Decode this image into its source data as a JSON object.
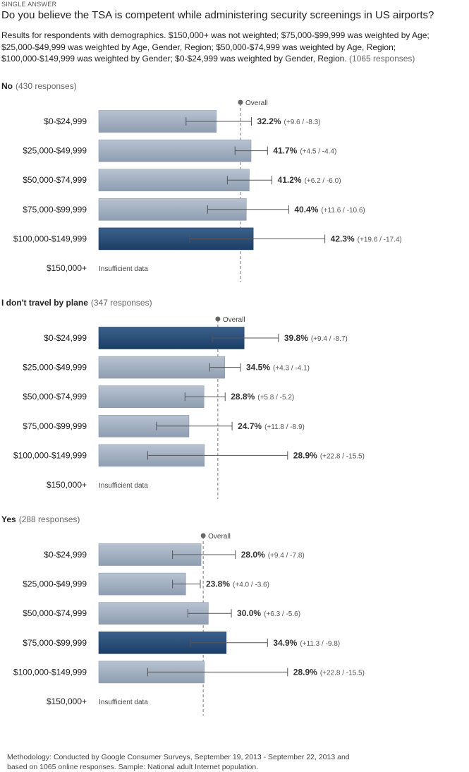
{
  "header": {
    "eyebrow": "SINGLE ANSWER",
    "title": "Do you believe the TSA is competent while administering security screenings in US airports?",
    "subtitle": "Results for respondents with demographics. $150,000+ was not weighted; $75,000-$99,999 was weighted by Age; $25,000-$49,999 was weighted by Age, Gender, Region; $50,000-$74,999 was weighted by Age, Region; $100,000-$149,999 was weighted by Gender; $0-$24,999 was weighted by Gender, Region.",
    "total_responses": "(1065 responses)"
  },
  "footer": {
    "methodology": "Methodology: Conducted by Google Consumer Surveys, September 19, 2013 - September 22, 2013 and based on 1065 online responses. Sample: National adult Internet population."
  },
  "colors": {
    "bar_light_top": "#b8c3d1",
    "bar_light_bottom": "#8e9db1",
    "bar_dark_top": "#3b618c",
    "bar_dark_bottom": "#1b3e66",
    "error_line": "#555555",
    "overall_line": "#777777"
  },
  "chart_data": [
    {
      "type": "bar",
      "orientation": "horizontal",
      "title": "No",
      "responses": "(430 responses)",
      "overall_label": "Overall",
      "overall": 38.8,
      "xlim": [
        0,
        100
      ],
      "categories": [
        "$0-$24,999",
        "$25,000-$49,999",
        "$50,000-$74,999",
        "$75,000-$99,999",
        "$100,000-$149,999",
        "$150,000+"
      ],
      "values": [
        32.2,
        41.7,
        41.2,
        40.4,
        42.3,
        null
      ],
      "value_labels": [
        "32.2%",
        "41.7%",
        "41.2%",
        "40.4%",
        "42.3%",
        ""
      ],
      "error_plus": [
        9.6,
        4.5,
        6.2,
        11.6,
        19.6,
        null
      ],
      "error_minus": [
        8.3,
        4.4,
        6.0,
        10.6,
        17.4,
        null
      ],
      "error_labels": [
        "(+9.6 / -8.3)",
        "(+4.5 / -4.4)",
        "(+6.2 / -6.0)",
        "(+11.6 / -10.6)",
        "(+19.6 / -17.4)",
        ""
      ],
      "highlight": [
        false,
        false,
        false,
        false,
        true,
        false
      ],
      "insufficient": [
        false,
        false,
        false,
        false,
        false,
        true
      ],
      "insufficient_label": "Insufficient data"
    },
    {
      "type": "bar",
      "orientation": "horizontal",
      "title": "I don't travel by plane",
      "responses": "(347 responses)",
      "overall_label": "Overall",
      "overall": 32.6,
      "xlim": [
        0,
        100
      ],
      "categories": [
        "$0-$24,999",
        "$25,000-$49,999",
        "$50,000-$74,999",
        "$75,000-$99,999",
        "$100,000-$149,999",
        "$150,000+"
      ],
      "values": [
        39.8,
        34.5,
        28.8,
        24.7,
        28.9,
        null
      ],
      "value_labels": [
        "39.8%",
        "34.5%",
        "28.8%",
        "24.7%",
        "28.9%",
        ""
      ],
      "error_plus": [
        9.4,
        4.3,
        5.8,
        11.8,
        22.8,
        null
      ],
      "error_minus": [
        8.7,
        4.1,
        5.2,
        8.9,
        15.5,
        null
      ],
      "error_labels": [
        "(+9.4 / -8.7)",
        "(+4.3 / -4.1)",
        "(+5.8 / -5.2)",
        "(+11.8 / -8.9)",
        "(+22.8 / -15.5)",
        ""
      ],
      "highlight": [
        true,
        false,
        false,
        false,
        false,
        false
      ],
      "insufficient": [
        false,
        false,
        false,
        false,
        false,
        true
      ],
      "insufficient_label": "Insufficient data"
    },
    {
      "type": "bar",
      "orientation": "horizontal",
      "title": "Yes",
      "responses": "(288 responses)",
      "overall_label": "Overall",
      "overall": 28.6,
      "xlim": [
        0,
        100
      ],
      "categories": [
        "$0-$24,999",
        "$25,000-$49,999",
        "$50,000-$74,999",
        "$75,000-$99,999",
        "$100,000-$149,999",
        "$150,000+"
      ],
      "values": [
        28.0,
        23.8,
        30.0,
        34.9,
        28.9,
        null
      ],
      "value_labels": [
        "28.0%",
        "23.8%",
        "30.0%",
        "34.9%",
        "28.9%",
        ""
      ],
      "error_plus": [
        9.4,
        4.0,
        6.3,
        11.3,
        22.8,
        null
      ],
      "error_minus": [
        7.8,
        3.6,
        5.6,
        9.8,
        15.5,
        null
      ],
      "error_labels": [
        "(+9.4 / -7.8)",
        "(+4.0 / -3.6)",
        "(+6.3 / -5.6)",
        "(+11.3 / -9.8)",
        "(+22.8 / -15.5)",
        ""
      ],
      "highlight": [
        false,
        false,
        false,
        true,
        false,
        false
      ],
      "insufficient": [
        false,
        false,
        false,
        false,
        false,
        true
      ],
      "insufficient_label": "Insufficient data"
    }
  ]
}
